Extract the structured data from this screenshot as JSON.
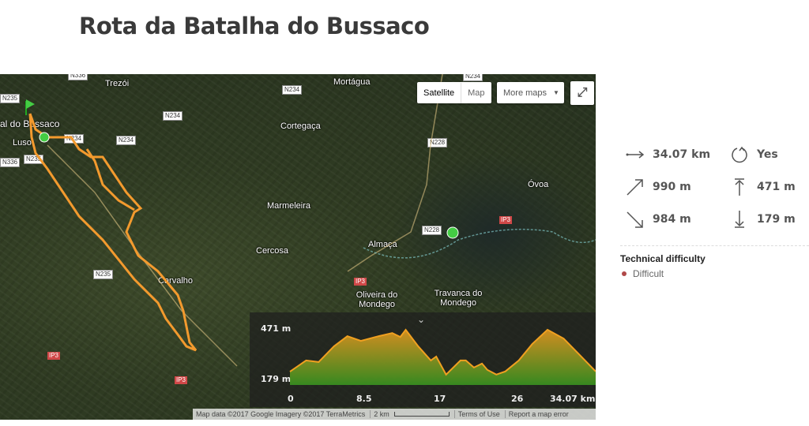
{
  "title": "Rota da Batalha do Bussaco",
  "map": {
    "controls": {
      "satellite": "Satellite",
      "map": "Map",
      "more_maps": "More maps",
      "fullscreen_icon": "fullscreen-icon"
    },
    "places": [
      {
        "name": "Trezói"
      },
      {
        "name": "Mortágua"
      },
      {
        "name": "Cortegaça"
      },
      {
        "name": "Marmeleira"
      },
      {
        "name": "Cercosa"
      },
      {
        "name": "Almaça"
      },
      {
        "name": "Carvalho"
      },
      {
        "name": "Oliveira do Mondego"
      },
      {
        "name": "Travanca do Mondego"
      },
      {
        "name": "Óvoa"
      },
      {
        "name": "Luso"
      },
      {
        "name": "al do Bussaco"
      }
    ],
    "roads": [
      "N336",
      "N234",
      "N234",
      "N234",
      "N234",
      "N235",
      "N235",
      "N336",
      "N228",
      "N228",
      "N235",
      "N234"
    ],
    "ip": [
      "IP3",
      "IP3",
      "IP3",
      "IP3"
    ],
    "route_color": "#f39a2e",
    "attribution": {
      "data": "Map data ©2017 Google Imagery ©2017 TerraMetrics",
      "scale": "2 km",
      "terms": "Terms of Use",
      "report": "Report a map error"
    }
  },
  "profile": {
    "y_max_label": "471 m",
    "y_min_label": "179 m",
    "x_labels": [
      "0",
      "8.5",
      "17",
      "26",
      "34.07 km"
    ],
    "y_range": [
      179,
      471
    ],
    "x_range": [
      0,
      34.07
    ],
    "points": [
      [
        0,
        204
      ],
      [
        1.8,
        275
      ],
      [
        3.2,
        265
      ],
      [
        4.9,
        365
      ],
      [
        6.4,
        430
      ],
      [
        7.9,
        400
      ],
      [
        9.9,
        430
      ],
      [
        11.4,
        450
      ],
      [
        12.3,
        425
      ],
      [
        12.9,
        471
      ],
      [
        14.3,
        365
      ],
      [
        15.7,
        275
      ],
      [
        16.3,
        300
      ],
      [
        17.4,
        185
      ],
      [
        19.0,
        275
      ],
      [
        19.6,
        275
      ],
      [
        20.5,
        230
      ],
      [
        21.4,
        255
      ],
      [
        22,
        215
      ],
      [
        23,
        185
      ],
      [
        24,
        205
      ],
      [
        25.5,
        275
      ],
      [
        27,
        380
      ],
      [
        28.7,
        471
      ],
      [
        30.5,
        415
      ],
      [
        32.2,
        315
      ],
      [
        34.07,
        205
      ]
    ],
    "colors": {
      "top": "#f0a020",
      "bottom": "#3a9a20"
    }
  },
  "stats": {
    "distance": "34.07 km",
    "loop": "Yes",
    "ascent": "990 m",
    "max_alt": "471 m",
    "descent": "984 m",
    "min_alt": "179 m"
  },
  "difficulty": {
    "heading": "Technical difficulty",
    "value": "Difficult",
    "color": "#b04848"
  }
}
